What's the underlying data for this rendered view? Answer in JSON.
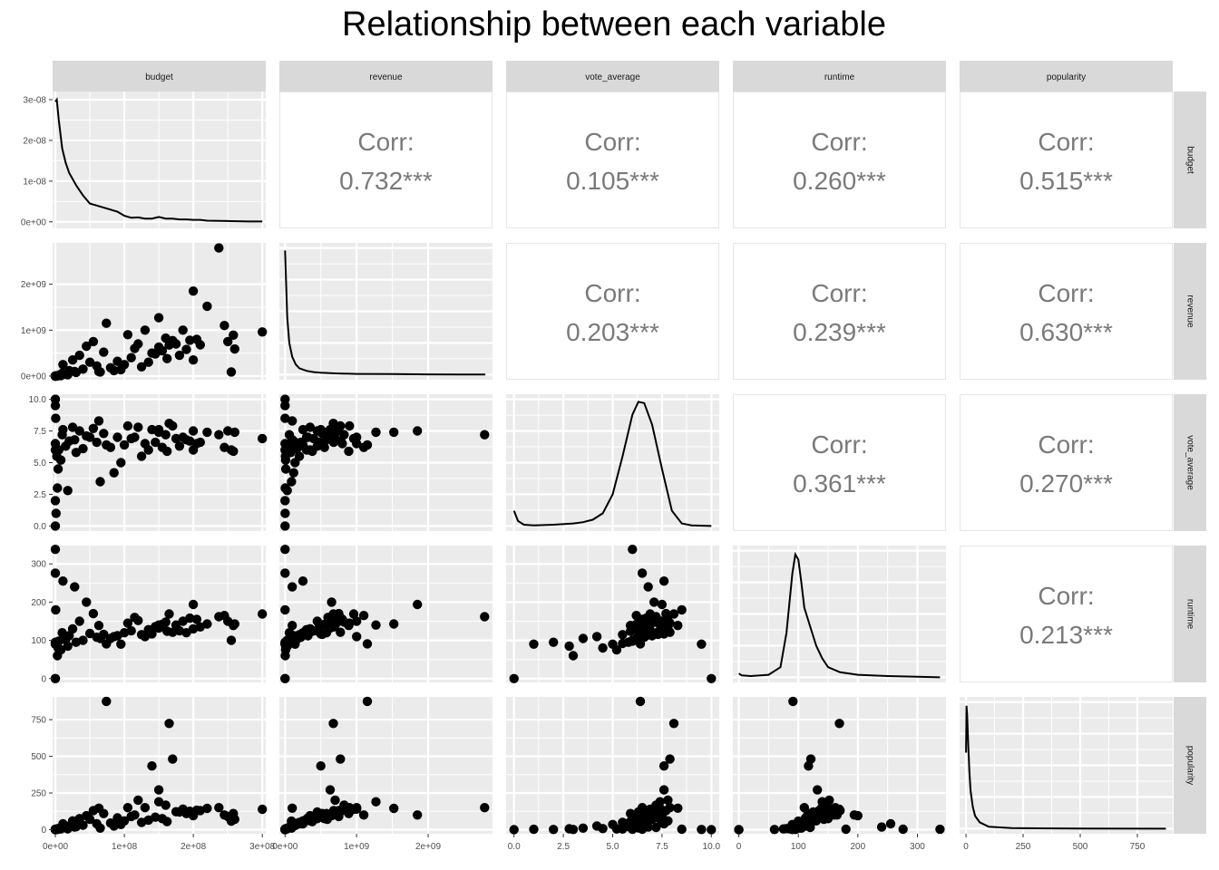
{
  "title": "Relationship between each variable",
  "colors": {
    "panel": "#ebebeb",
    "grid_major": "#ffffff",
    "strip": "#d9d9d9",
    "points": "#000000",
    "corr_text": "#7a7a7a",
    "corr_border": "#e6e6e6"
  },
  "chart_data": {
    "type": "scatter",
    "title": "Relationship between each variable",
    "variables": [
      "budget",
      "revenue",
      "vote_average",
      "runtime",
      "popularity"
    ],
    "axes": {
      "budget": {
        "lim": [
          -4000000.0,
          305000000.0
        ],
        "ticks": [
          0,
          100000000.0,
          200000000.0,
          300000000.0
        ],
        "tick_labels": [
          "0e+00",
          "1e+08",
          "2e+08",
          "3e+08"
        ]
      },
      "revenue": {
        "lim": [
          -80000000.0,
          2900000000.0
        ],
        "ticks": [
          0,
          1000000000.0,
          2000000000.0
        ],
        "tick_labels": [
          "0e+00",
          "1e+09",
          "2e+09"
        ]
      },
      "vote_average": {
        "lim": [
          -0.4,
          10.4
        ],
        "ticks": [
          0,
          2.5,
          5,
          7.5,
          10
        ],
        "tick_labels": [
          "0.0",
          "2.5",
          "5.0",
          "7.5",
          "10.0"
        ]
      },
      "runtime": {
        "lim": [
          -10,
          348
        ],
        "ticks": [
          0,
          100,
          200,
          300
        ],
        "tick_labels": [
          "0",
          "100",
          "200",
          "300"
        ]
      },
      "popularity": {
        "lim": [
          -28,
          905
        ],
        "ticks": [
          0,
          250,
          500,
          750
        ],
        "tick_labels": [
          "0",
          "250",
          "500",
          "750"
        ]
      }
    },
    "density_axis": {
      "lim": [
        -1.6e-09,
        3.2e-08
      ],
      "ticks": [
        0,
        1e-08,
        2e-08,
        3e-08
      ],
      "tick_labels": [
        "0e+00",
        "1e-08",
        "2e-08",
        "3e-08"
      ]
    },
    "correlations": [
      {
        "row": "budget",
        "col": "revenue",
        "label": "Corr:",
        "value": "0.732***"
      },
      {
        "row": "budget",
        "col": "vote_average",
        "label": "Corr:",
        "value": "0.105***"
      },
      {
        "row": "budget",
        "col": "runtime",
        "label": "Corr:",
        "value": "0.260***"
      },
      {
        "row": "budget",
        "col": "popularity",
        "label": "Corr:",
        "value": "0.515***"
      },
      {
        "row": "revenue",
        "col": "vote_average",
        "label": "Corr:",
        "value": "0.203***"
      },
      {
        "row": "revenue",
        "col": "runtime",
        "label": "Corr:",
        "value": "0.239***"
      },
      {
        "row": "revenue",
        "col": "popularity",
        "label": "Corr:",
        "value": "0.630***"
      },
      {
        "row": "vote_average",
        "col": "runtime",
        "label": "Corr:",
        "value": "0.361***"
      },
      {
        "row": "vote_average",
        "col": "popularity",
        "label": "Corr:",
        "value": "0.270***"
      },
      {
        "row": "runtime",
        "col": "popularity",
        "label": "Corr:",
        "value": "0.213***"
      }
    ],
    "densities": {
      "budget": {
        "x": [
          0,
          2000000.0,
          5000000.0,
          10000000.0,
          15000000.0,
          20000000.0,
          30000000.0,
          40000000.0,
          50000000.0,
          60000000.0,
          70000000.0,
          80000000.0,
          90000000.0,
          100000000.0,
          110000000.0,
          120000000.0,
          130000000.0,
          140000000.0,
          150000000.0,
          160000000.0,
          170000000.0,
          180000000.0,
          190000000.0,
          200000000.0,
          210000000.0,
          220000000.0,
          250000000.0,
          280000000.0,
          300000000.0
        ],
        "y": [
          2.95e-08,
          3e-08,
          2.5e-08,
          1.8e-08,
          1.45e-08,
          1.2e-08,
          9e-09,
          6.5e-09,
          4.5e-09,
          4e-09,
          3.5e-09,
          3e-09,
          2.5e-09,
          1.5e-09,
          1e-09,
          1.1e-09,
          8e-10,
          8e-10,
          1.2e-09,
          8e-10,
          8e-10,
          6e-10,
          6e-10,
          5e-10,
          5e-10,
          3e-10,
          2e-10,
          1e-10,
          1e-10
        ]
      },
      "revenue": {
        "x": [
          0,
          10000000.0,
          30000000.0,
          60000000.0,
          100000000.0,
          150000000.0,
          200000000.0,
          300000000.0,
          400000000.0,
          500000000.0,
          700000000.0,
          1000000000.0,
          1500000000.0,
          2000000000.0,
          2800000000.0
        ],
        "y": [
          0.98,
          0.8,
          0.45,
          0.25,
          0.14,
          0.08,
          0.05,
          0.03,
          0.02,
          0.015,
          0.01,
          0.006,
          0.004,
          0.002,
          0.001
        ]
      },
      "vote_average": {
        "x": [
          0,
          0.2,
          0.5,
          1,
          2,
          3,
          3.5,
          4,
          4.5,
          5,
          5.5,
          6,
          6.3,
          6.6,
          7,
          7.5,
          8,
          8.5,
          9,
          10
        ],
        "y": [
          0.12,
          0.04,
          0.01,
          0.005,
          0.01,
          0.02,
          0.03,
          0.05,
          0.1,
          0.25,
          0.55,
          0.88,
          0.98,
          0.97,
          0.8,
          0.45,
          0.12,
          0.02,
          0.005,
          0.0
        ]
      },
      "runtime": {
        "x": [
          0,
          5,
          20,
          50,
          70,
          80,
          90,
          95,
          100,
          105,
          110,
          120,
          130,
          140,
          150,
          170,
          200,
          250,
          300,
          338
        ],
        "y": [
          0.03,
          0.015,
          0.01,
          0.02,
          0.08,
          0.35,
          0.82,
          0.97,
          0.93,
          0.75,
          0.55,
          0.4,
          0.25,
          0.15,
          0.08,
          0.04,
          0.02,
          0.01,
          0.005,
          0.0
        ]
      },
      "popularity": {
        "x": [
          0,
          2,
          5,
          10,
          15,
          20,
          30,
          40,
          60,
          100,
          200,
          500,
          875
        ],
        "y": [
          0.6,
          0.97,
          0.9,
          0.65,
          0.45,
          0.3,
          0.17,
          0.1,
          0.05,
          0.015,
          0.004,
          0.001,
          0.0
        ]
      }
    },
    "points": [
      {
        "budget": 237000000.0,
        "revenue": 2790000000.0,
        "vote_average": 7.2,
        "runtime": 162,
        "popularity": 150
      },
      {
        "budget": 200000000.0,
        "revenue": 1850000000.0,
        "vote_average": 7.5,
        "runtime": 194,
        "popularity": 100
      },
      {
        "budget": 220000000.0,
        "revenue": 1520000000.0,
        "vote_average": 7.4,
        "runtime": 143,
        "popularity": 145
      },
      {
        "budget": 150000000.0,
        "revenue": 1270000000.0,
        "vote_average": 7.4,
        "runtime": 140,
        "popularity": 190
      },
      {
        "budget": 130000000.0,
        "revenue": 1000000000.0,
        "vote_average": 6.5,
        "runtime": 110,
        "popularity": 150
      },
      {
        "budget": 245000000.0,
        "revenue": 1100000000.0,
        "vote_average": 6.2,
        "runtime": 165,
        "popularity": 100
      },
      {
        "budget": 300000000.0,
        "revenue": 960000000.0,
        "vote_average": 6.9,
        "runtime": 169,
        "popularity": 139
      },
      {
        "budget": 260000000.0,
        "revenue": 590000000.0,
        "vote_average": 7.4,
        "runtime": 143,
        "popularity": 70
      },
      {
        "budget": 258000000.0,
        "revenue": 890000000.0,
        "vote_average": 5.9,
        "runtime": 139,
        "popularity": 110
      },
      {
        "budget": 255000000.0,
        "revenue": 89000000.0,
        "vote_average": 6.0,
        "runtime": 100,
        "popularity": 58
      },
      {
        "budget": 250000000.0,
        "revenue": 750000000.0,
        "vote_average": 7.5,
        "runtime": 150,
        "popularity": 90
      },
      {
        "budget": 165000000.0,
        "revenue": 675000000.0,
        "vote_average": 8.1,
        "runtime": 169,
        "popularity": 724
      },
      {
        "budget": 140000000.0,
        "revenue": 500000000.0,
        "vote_average": 7.6,
        "runtime": 117,
        "popularity": 434
      },
      {
        "budget": 170000000.0,
        "revenue": 773000000.0,
        "vote_average": 7.9,
        "runtime": 121,
        "popularity": 481
      },
      {
        "budget": 74000000.0,
        "revenue": 1150000000.0,
        "vote_average": 6.4,
        "runtime": 91,
        "popularity": 875
      },
      {
        "budget": 150000000.0,
        "revenue": 630000000.0,
        "vote_average": 7.6,
        "runtime": 132,
        "popularity": 271
      },
      {
        "budget": 120000000.0,
        "revenue": 700000000.0,
        "vote_average": 7.8,
        "runtime": 152,
        "popularity": 201
      },
      {
        "budget": 63000000.0,
        "revenue": 100000000.0,
        "vote_average": 8.3,
        "runtime": 139,
        "popularity": 146
      },
      {
        "budget": 160000000.0,
        "revenue": 826000000.0,
        "vote_average": 7.2,
        "runtime": 148,
        "popularity": 167
      },
      {
        "budget": 180000000.0,
        "revenue": 450000000.0,
        "vote_average": 6.3,
        "runtime": 125,
        "popularity": 120
      },
      {
        "budget": 210000000.0,
        "revenue": 680000000.0,
        "vote_average": 6.6,
        "runtime": 135,
        "popularity": 130
      },
      {
        "budget": 200000000.0,
        "revenue": 350000000.0,
        "vote_average": 6.0,
        "runtime": 130,
        "popularity": 95
      },
      {
        "budget": 190000000.0,
        "revenue": 580000000.0,
        "vote_average": 6.8,
        "runtime": 120,
        "popularity": 110
      },
      {
        "budget": 175000000.0,
        "revenue": 700000000.0,
        "vote_average": 6.9,
        "runtime": 140,
        "popularity": 122
      },
      {
        "budget": 205000000.0,
        "revenue": 800000000.0,
        "vote_average": 6.5,
        "runtime": 155,
        "popularity": 132
      },
      {
        "budget": 90000000.0,
        "revenue": 320000000.0,
        "vote_average": 7.0,
        "runtime": 112,
        "popularity": 80
      },
      {
        "budget": 100000000.0,
        "revenue": 250000000.0,
        "vote_average": 6.4,
        "runtime": 120,
        "popularity": 60
      },
      {
        "budget": 110000000.0,
        "revenue": 400000000.0,
        "vote_average": 6.9,
        "runtime": 125,
        "popularity": 90
      },
      {
        "budget": 80000000.0,
        "revenue": 180000000.0,
        "vote_average": 6.2,
        "runtime": 105,
        "popularity": 45
      },
      {
        "budget": 70000000.0,
        "revenue": 520000000.0,
        "vote_average": 7.3,
        "runtime": 116,
        "popularity": 110
      },
      {
        "budget": 60000000.0,
        "revenue": 220000000.0,
        "vote_average": 6.6,
        "runtime": 108,
        "popularity": 40
      },
      {
        "budget": 50000000.0,
        "revenue": 300000000.0,
        "vote_average": 7.0,
        "runtime": 118,
        "popularity": 70
      },
      {
        "budget": 40000000.0,
        "revenue": 150000000.0,
        "vote_average": 6.1,
        "runtime": 100,
        "popularity": 30
      },
      {
        "budget": 30000000.0,
        "revenue": 80000000.0,
        "vote_average": 5.8,
        "runtime": 95,
        "popularity": 20
      },
      {
        "budget": 20000000.0,
        "revenue": 120000000.0,
        "vote_average": 6.7,
        "runtime": 112,
        "popularity": 25
      },
      {
        "budget": 15000000.0,
        "revenue": 40000000.0,
        "vote_average": 6.3,
        "runtime": 102,
        "popularity": 12
      },
      {
        "budget": 10000000.0,
        "revenue": 60000000.0,
        "vote_average": 7.2,
        "runtime": 120,
        "popularity": 15
      },
      {
        "budget": 5000000.0,
        "revenue": 20000000.0,
        "vote_average": 6.0,
        "runtime": 98,
        "popularity": 8
      },
      {
        "budget": 2000000.0,
        "revenue": 5000000.0,
        "vote_average": 5.5,
        "runtime": 92,
        "popularity": 4
      },
      {
        "budget": 0,
        "revenue": 0,
        "vote_average": 0.0,
        "runtime": 0,
        "popularity": 0
      },
      {
        "budget": 0,
        "revenue": 0,
        "vote_average": 10.0,
        "runtime": 0,
        "popularity": 0
      },
      {
        "budget": 0,
        "revenue": 0,
        "vote_average": 6.0,
        "runtime": 338,
        "popularity": 2
      },
      {
        "budget": 0,
        "revenue": 0,
        "vote_average": 6.5,
        "runtime": 276,
        "popularity": 3
      },
      {
        "budget": 0,
        "revenue": 0,
        "vote_average": 2.0,
        "runtime": 95,
        "popularity": 1
      },
      {
        "budget": 0,
        "revenue": 0,
        "vote_average": 9.5,
        "runtime": 90,
        "popularity": 1
      },
      {
        "budget": 1000000.0,
        "revenue": 1000000.0,
        "vote_average": 1.0,
        "runtime": 90,
        "popularity": 2
      },
      {
        "budget": 3000000.0,
        "revenue": 2000000.0,
        "vote_average": 3.0,
        "runtime": 60,
        "popularity": 1
      },
      {
        "budget": 500000.0,
        "revenue": 300000.0,
        "vote_average": 8.5,
        "runtime": 180,
        "popularity": 3
      },
      {
        "budget": 25000000.0,
        "revenue": 350000000.0,
        "vote_average": 7.8,
        "runtime": 130,
        "popularity": 60
      },
      {
        "budget": 35000000.0,
        "revenue": 450000000.0,
        "vote_average": 7.5,
        "runtime": 150,
        "popularity": 75
      },
      {
        "budget": 45000000.0,
        "revenue": 650000000.0,
        "vote_average": 7.1,
        "runtime": 200,
        "popularity": 95
      },
      {
        "budget": 55000000.0,
        "revenue": 750000000.0,
        "vote_average": 7.7,
        "runtime": 170,
        "popularity": 130
      },
      {
        "budget": 65000000.0,
        "revenue": 90000000.0,
        "vote_average": 3.5,
        "runtime": 105,
        "popularity": 10
      },
      {
        "budget": 85000000.0,
        "revenue": 120000000.0,
        "vote_average": 4.2,
        "runtime": 110,
        "popularity": 25
      },
      {
        "budget": 95000000.0,
        "revenue": 140000000.0,
        "vote_average": 5.0,
        "runtime": 90,
        "popularity": 35
      },
      {
        "budget": 105000000.0,
        "revenue": 900000000.0,
        "vote_average": 7.9,
        "runtime": 145,
        "popularity": 150
      },
      {
        "budget": 115000000.0,
        "revenue": 600000000.0,
        "vote_average": 7.0,
        "runtime": 160,
        "popularity": 100
      },
      {
        "budget": 125000000.0,
        "revenue": 200000000.0,
        "vote_average": 5.5,
        "runtime": 115,
        "popularity": 50
      },
      {
        "budget": 135000000.0,
        "revenue": 300000000.0,
        "vote_average": 6.0,
        "runtime": 128,
        "popularity": 65
      },
      {
        "budget": 145000000.0,
        "revenue": 480000000.0,
        "vote_average": 6.6,
        "runtime": 136,
        "popularity": 85
      },
      {
        "budget": 155000000.0,
        "revenue": 550000000.0,
        "vote_average": 6.2,
        "runtime": 142,
        "popularity": 75
      },
      {
        "budget": 162000000.0,
        "revenue": 380000000.0,
        "vote_average": 5.9,
        "runtime": 124,
        "popularity": 55
      },
      {
        "budget": 185000000.0,
        "revenue": 1000000000.0,
        "vote_average": 7.0,
        "runtime": 150,
        "popularity": 140
      },
      {
        "budget": 195000000.0,
        "revenue": 780000000.0,
        "vote_average": 6.7,
        "runtime": 158,
        "popularity": 125
      },
      {
        "budget": 11000000.0,
        "revenue": 250000000.0,
        "vote_average": 7.6,
        "runtime": 255,
        "popularity": 40
      },
      {
        "budget": 28000000.0,
        "revenue": 100000000.0,
        "vote_average": 6.8,
        "runtime": 240,
        "popularity": 18
      },
      {
        "budget": 18000000.0,
        "revenue": 30000000.0,
        "vote_average": 2.8,
        "runtime": 85,
        "popularity": 6
      },
      {
        "budget": 4000000.0,
        "revenue": 10000000.0,
        "vote_average": 4.5,
        "runtime": 80,
        "popularity": 7
      },
      {
        "budget": 8000000.0,
        "revenue": 8000000.0,
        "vote_average": 5.2,
        "runtime": 75,
        "popularity": 5
      }
    ]
  }
}
